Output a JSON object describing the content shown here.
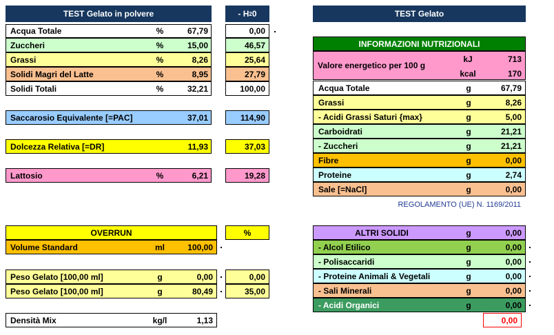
{
  "left": {
    "header": "TEST Gelato in polvere",
    "header2": "- H",
    "header2_sub": "2",
    "header2_tail": "0",
    "rows": [
      {
        "label": "Acqua Totale",
        "unit": "%",
        "val": "67,79",
        "val2": "0,00"
      },
      {
        "label": "Zuccheri",
        "unit": "%",
        "val": "15,00",
        "val2": "46,57"
      },
      {
        "label": "Grassi",
        "unit": "%",
        "val": "8,26",
        "val2": "25,64"
      },
      {
        "label": "Solidi Magri del Latte",
        "unit": "%",
        "val": "8,95",
        "val2": "27,79"
      },
      {
        "label": "Solidi Totali",
        "unit": "%",
        "val": "32,21",
        "val2": "100,00"
      }
    ],
    "pac": {
      "label": "Saccarosio Equivalente [=PAC]",
      "val": "37,01",
      "val2": "114,90"
    },
    "dr": {
      "label": "Dolcezza Relativa [=DR]",
      "val": "11,93",
      "val2": "37,03"
    },
    "lattosio": {
      "label": "Lattosio",
      "unit": "%",
      "val": "6,21",
      "val2": "19,28"
    },
    "overrun": {
      "label": "OVERRUN",
      "pct": "%"
    },
    "volume": {
      "label": "Volume Standard",
      "unit": "ml",
      "val": "100,00"
    },
    "peso1": {
      "label": "Peso Gelato [100,00 ml]",
      "unit": "g",
      "val": "0,00",
      "val2": "0,00"
    },
    "peso2": {
      "label": "Peso Gelato [100,00 ml]",
      "unit": "g",
      "val": "80,49",
      "val2": "35,00"
    },
    "densita": {
      "label": "Densità Mix",
      "unit": "kg/l",
      "val": "1,13"
    }
  },
  "right": {
    "header": "TEST Gelato",
    "info_title": "INFORMAZIONI NUTRIZIONALI",
    "energy": {
      "label": "Valore energetico per 100 g",
      "unit1": "kJ",
      "val1": "713",
      "unit2": "kcal",
      "val2": "170"
    },
    "rows": [
      {
        "label": "Acqua Totale",
        "unit": "g",
        "val": "67,79"
      },
      {
        "label": "Grassi",
        "unit": "g",
        "val": "8,26"
      },
      {
        "label": "- Acidi Grassi Saturi {max}",
        "unit": "g",
        "val": "5,00"
      },
      {
        "label": "Carboidrati",
        "unit": "g",
        "val": "21,21"
      },
      {
        "label": "- Zuccheri",
        "unit": "g",
        "val": "21,21"
      },
      {
        "label": "Fibre",
        "unit": "g",
        "val": "0,00"
      },
      {
        "label": "Proteine",
        "unit": "g",
        "val": "2,74"
      },
      {
        "label": "Sale [=NaCl]",
        "unit": "g",
        "val": "0,00"
      }
    ],
    "regulation": "REGOLAMENTO (UE) N. 1169/2011",
    "altri": {
      "label": "ALTRI SOLIDI",
      "unit": "g",
      "val": "0,00"
    },
    "altri_rows": [
      {
        "label": "- Alcol Etilico",
        "unit": "g",
        "val": "0,00"
      },
      {
        "label": "- Polisaccaridi",
        "unit": "g",
        "val": "0,00"
      },
      {
        "label": "- Proteine Animali & Vegetali",
        "unit": "g",
        "val": "0,00"
      },
      {
        "label": "- Sali Minerali",
        "unit": "g",
        "val": "0,00"
      },
      {
        "label": "- Acidi Organici",
        "unit": "g",
        "val": "0,00"
      }
    ],
    "total_red": "0,00"
  },
  "colors": {
    "navy": "#17375e",
    "green_light": "#ccffcc",
    "yellow_light": "#ffff99",
    "peach": "#fac090",
    "blue_light": "#99ccff",
    "yellow": "#ffff00",
    "pink": "#ff99cc",
    "orange": "#ffc000",
    "green_dark": "#008000",
    "lavender": "#cc99ff",
    "olive_green": "#92d050",
    "cyan_light": "#ccffff",
    "sea_green": "#3c9c60",
    "red": "#ff0000"
  }
}
